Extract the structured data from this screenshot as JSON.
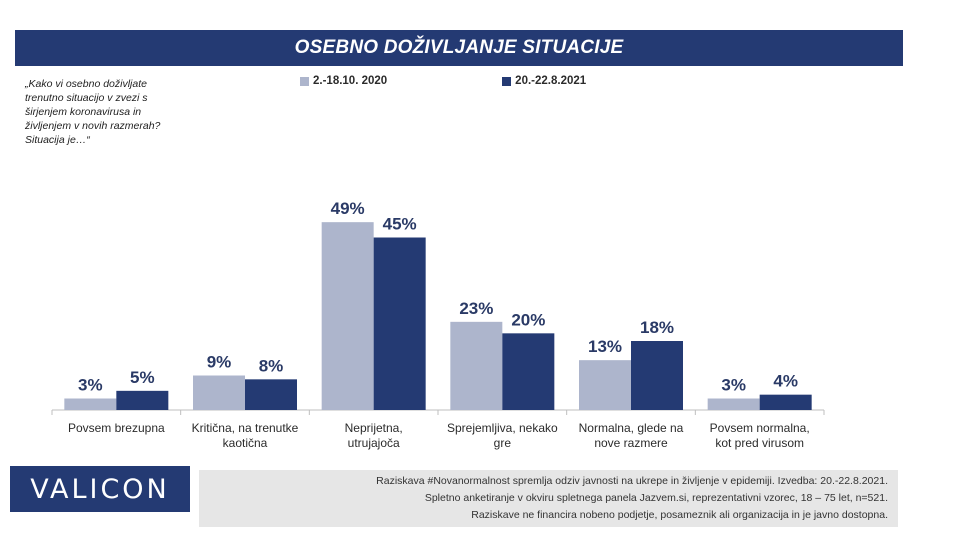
{
  "header": {
    "title": "OSEBNO DOŽIVLJANJE SITUACIJE"
  },
  "question": "„Kako vi osebno doživljate\ntrenutno situacijo v zvezi s\nširjenjem koronavirusa in\nživljenjem v novih razmerah?\nSituacija je…“",
  "colors": {
    "series1": "#adb5cc",
    "series2": "#243a73",
    "brand": "#243a73"
  },
  "chart_data": {
    "type": "bar",
    "categories": [
      [
        "Povsem brezupna"
      ],
      [
        "Kritična, na trenutke",
        "kaotična"
      ],
      [
        "Neprijetna,",
        "utrujajoča"
      ],
      [
        "Sprejemljiva, nekako",
        "gre"
      ],
      [
        "Normalna, glede na",
        "nove razmere"
      ],
      [
        "Povsem normalna,",
        "kot pred virusom"
      ]
    ],
    "series": [
      {
        "name": "2.-18.10. 2020",
        "values": [
          3,
          9,
          49,
          23,
          13,
          3
        ],
        "labels": [
          "3%",
          "9%",
          "49%",
          "23%",
          "13%",
          "3%"
        ]
      },
      {
        "name": "20.-22.8.2021",
        "values": [
          5,
          8,
          45,
          20,
          18,
          4
        ],
        "labels": [
          "5%",
          "8%",
          "45%",
          "20%",
          "18%",
          "4%"
        ]
      }
    ],
    "ylim": [
      0,
      60
    ],
    "legend_position": "top",
    "grid": false
  },
  "footer": {
    "logo": "VALICON",
    "lines": [
      "Raziskava #Novanormalnost spremlja odziv javnosti na ukrepe in življenje v epidemiji. Izvedba: 20.-22.8.2021.",
      "Spletno anketiranje v okviru spletnega panela Jazvem.si, reprezentativni vzorec, 18 – 75 let, n=521.",
      "Raziskave ne financira nobeno podjetje, posameznik ali organizacija in je javno dostopna."
    ]
  }
}
